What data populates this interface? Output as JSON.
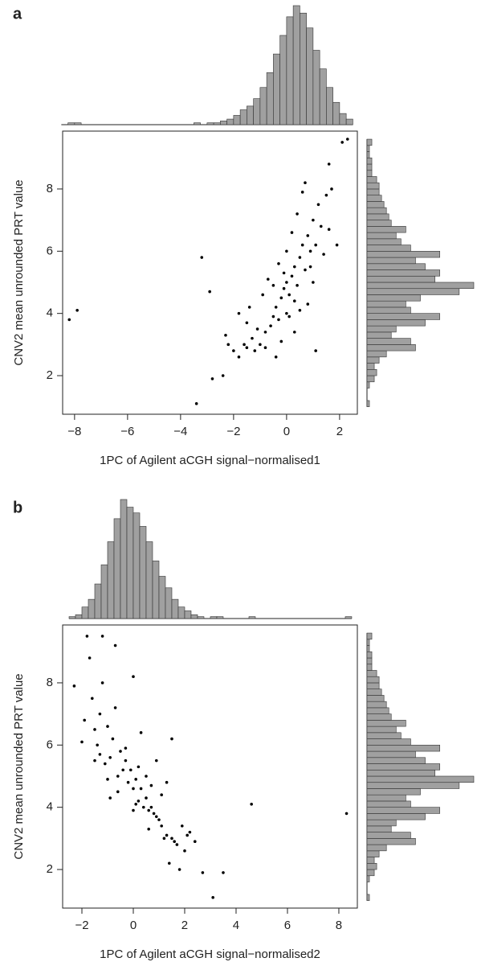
{
  "chart_data": [
    {
      "type": "scatter",
      "panel_label": "a",
      "x_label": "1PC of Agilent aCGH signal−normalised1",
      "y_label": "CNV2 mean unrounded PRT value",
      "color": "#000000",
      "x": [
        -8.2,
        -7.9,
        -3.4,
        -3.2,
        -2.9,
        -2.8,
        -2.4,
        2.3,
        2.1,
        1.6,
        1.1,
        -2.2,
        -2.0,
        -1.8,
        -1.6,
        -1.5,
        -1.3,
        -1.2,
        -1.0,
        -0.8,
        -0.6,
        -0.5,
        -0.4,
        -0.3,
        -0.2,
        -0.1,
        0,
        0.1,
        0.2,
        0.3,
        0.4,
        0.5,
        0.6,
        0.7,
        0.8,
        0.9,
        1.0,
        1.2,
        1.3,
        1.5,
        1.7,
        -1.8,
        -1.5,
        -1.1,
        -0.9,
        -0.7,
        -0.3,
        0,
        0.2,
        0.4,
        0.6,
        0.8,
        1.0,
        1.4,
        0.3,
        -0.2,
        0.1,
        -0.5,
        0.5,
        1.1,
        -1.4,
        0.7,
        -0.8,
        0.0,
        0.3,
        -0.1,
        1.9,
        1.6,
        -2.3,
        0.9,
        -0.4
      ],
      "values": [
        3.8,
        4.1,
        1.1,
        5.8,
        4.7,
        1.9,
        2.0,
        9.6,
        9.5,
        8.8,
        2.8,
        3.0,
        2.8,
        2.6,
        3.0,
        2.9,
        3.2,
        2.8,
        3.0,
        3.4,
        3.6,
        3.9,
        4.2,
        3.8,
        4.5,
        4.8,
        5.0,
        4.6,
        5.2,
        5.5,
        4.9,
        5.8,
        6.2,
        5.4,
        6.5,
        6.0,
        7.0,
        7.5,
        6.8,
        7.8,
        8.0,
        4.0,
        3.7,
        3.5,
        4.6,
        5.1,
        5.6,
        6.0,
        6.6,
        7.2,
        7.9,
        4.3,
        5.0,
        5.9,
        3.4,
        3.1,
        3.9,
        4.9,
        4.1,
        6.2,
        4.2,
        8.2,
        2.9,
        4.0,
        4.4,
        5.3,
        6.2,
        6.7,
        3.3,
        5.5,
        2.6
      ],
      "xlim": [
        -8.45,
        2.67
      ],
      "ylim": [
        0.76,
        9.86
      ],
      "xticks": [
        {
          "value": -8,
          "label": "−8"
        },
        {
          "value": -6,
          "label": "−6"
        },
        {
          "value": -4,
          "label": "−4"
        },
        {
          "value": -2,
          "label": "−2"
        },
        0,
        2
      ],
      "yticks": [
        2,
        4,
        6,
        8
      ]
    },
    {
      "type": "histogram",
      "orientation": "vertical",
      "color": "#a0a0a0",
      "bins": [
        -8.5,
        -8.25,
        -8,
        -7.75,
        -7.5,
        -7.25,
        -7,
        -6.75,
        -6.5,
        -6.25,
        -6,
        -5.75,
        -5.5,
        -5.25,
        -5,
        -4.75,
        -4.5,
        -4.25,
        -4,
        -3.75,
        -3.5,
        -3.25,
        -3,
        -2.75,
        -2.5,
        -2.25,
        -2,
        -1.75,
        -1.5,
        -1.25,
        -1,
        -0.75,
        -0.5,
        -0.25,
        0,
        0.25,
        0.5,
        0.75,
        1,
        1.25,
        1.5,
        1.75,
        2,
        2.25,
        2.5
      ],
      "counts": [
        0,
        1,
        1,
        0,
        0,
        0,
        0,
        0,
        0,
        0,
        0,
        0,
        0,
        0,
        0,
        0,
        0,
        0,
        0,
        0,
        1,
        0,
        1,
        1,
        2,
        3,
        5,
        8,
        10,
        14,
        20,
        28,
        38,
        48,
        58,
        64,
        60,
        52,
        40,
        30,
        20,
        12,
        6,
        3
      ]
    },
    {
      "type": "histogram",
      "orientation": "horizontal",
      "color": "#a0a0a0",
      "bins": [
        1.0,
        1.2,
        1.4,
        1.6,
        1.8,
        2.0,
        2.2,
        2.4,
        2.6,
        2.8,
        3.0,
        3.2,
        3.4,
        3.6,
        3.8,
        4.0,
        4.2,
        4.4,
        4.6,
        4.8,
        5.0,
        5.2,
        5.4,
        5.6,
        5.8,
        6.0,
        6.2,
        6.4,
        6.6,
        6.8,
        7.0,
        7.2,
        7.4,
        7.6,
        7.8,
        8.0,
        8.2,
        8.4,
        8.6,
        8.8,
        9.0,
        9.2,
        9.4,
        9.6
      ],
      "counts": [
        1,
        0,
        0,
        1,
        3,
        4,
        3,
        5,
        8,
        20,
        18,
        10,
        12,
        24,
        30,
        18,
        16,
        22,
        38,
        44,
        28,
        30,
        24,
        20,
        30,
        18,
        14,
        12,
        16,
        10,
        9,
        8,
        7,
        6,
        5,
        5,
        4,
        2,
        2,
        2,
        1,
        1,
        2
      ]
    },
    {
      "type": "scatter",
      "panel_label": "b",
      "x_label": "1PC of Agilent aCGH signal−normalised2",
      "y_label": "CNV2 mean unrounded PRT value",
      "color": "#000000",
      "x": [
        4.6,
        8.3,
        3.1,
        3.5,
        2.7,
        -1.8,
        -1.2,
        -0.7,
        0,
        -2.3,
        1.4,
        -1.6,
        -1.3,
        -1.0,
        -0.8,
        -0.5,
        -0.3,
        -0.1,
        0.1,
        0.3,
        0.5,
        0.7,
        0.9,
        1.1,
        1.3,
        1.5,
        1.7,
        2.0,
        2.2,
        -1.9,
        -1.4,
        -1.1,
        -0.6,
        -0.2,
        0.2,
        0.6,
        1.0,
        1.6,
        -1.5,
        -0.9,
        -0.4,
        0.0,
        0.4,
        0.8,
        1.2,
        2.4,
        -1.7,
        -1.2,
        -0.7,
        0.3,
        0.9,
        1.5,
        -2.0,
        -0.6,
        0.1,
        0.6,
        1.8,
        -1.0,
        -0.3,
        0.5,
        1.1,
        1.9,
        -1.5,
        0.0,
        0.7,
        -0.9,
        1.3,
        2.1,
        -1.3,
        0.2
      ],
      "values": [
        4.1,
        3.8,
        1.1,
        1.9,
        1.9,
        9.5,
        9.5,
        9.2,
        8.2,
        7.9,
        2.2,
        7.5,
        7.0,
        6.6,
        6.2,
        5.8,
        5.5,
        5.2,
        4.9,
        4.6,
        4.3,
        4.0,
        3.7,
        3.4,
        3.1,
        3.0,
        2.8,
        2.6,
        3.2,
        6.8,
        6.0,
        5.4,
        5.0,
        4.8,
        4.2,
        3.9,
        3.6,
        2.9,
        5.5,
        5.6,
        5.2,
        4.6,
        4.0,
        3.8,
        3.0,
        2.9,
        8.8,
        8.0,
        7.2,
        6.4,
        5.5,
        6.2,
        6.1,
        4.5,
        4.1,
        3.3,
        2.0,
        4.9,
        5.9,
        5.0,
        4.4,
        3.4,
        6.5,
        3.9,
        4.7,
        4.3,
        4.8,
        3.1,
        5.7,
        5.3
      ],
      "xlim": [
        -2.75,
        8.72
      ],
      "ylim": [
        0.76,
        9.86
      ],
      "xticks": [
        {
          "value": -2,
          "label": "−2"
        },
        0,
        2,
        4,
        6,
        8
      ],
      "yticks": [
        2,
        4,
        6,
        8
      ]
    },
    {
      "type": "histogram",
      "orientation": "vertical",
      "color": "#a0a0a0",
      "bins": [
        -2.5,
        -2.25,
        -2,
        -1.75,
        -1.5,
        -1.25,
        -1,
        -0.75,
        -0.5,
        -0.25,
        0,
        0.25,
        0.5,
        0.75,
        1,
        1.25,
        1.5,
        1.75,
        2,
        2.25,
        2.5,
        2.75,
        3,
        3.25,
        3.5,
        3.75,
        4,
        4.25,
        4.5,
        4.75,
        5,
        5.25,
        5.5,
        5.75,
        6,
        6.25,
        6.5,
        6.75,
        7,
        7.25,
        7.5,
        7.75,
        8,
        8.25,
        8.5
      ],
      "counts": [
        1,
        2,
        6,
        10,
        18,
        28,
        40,
        52,
        62,
        58,
        55,
        48,
        40,
        30,
        22,
        16,
        10,
        6,
        4,
        2,
        1,
        0,
        1,
        1,
        0,
        0,
        0,
        0,
        1,
        0,
        0,
        0,
        0,
        0,
        0,
        0,
        0,
        0,
        0,
        0,
        0,
        0,
        0,
        1
      ]
    },
    {
      "type": "histogram",
      "orientation": "horizontal",
      "color": "#a0a0a0",
      "bins": [
        1.0,
        1.2,
        1.4,
        1.6,
        1.8,
        2.0,
        2.2,
        2.4,
        2.6,
        2.8,
        3.0,
        3.2,
        3.4,
        3.6,
        3.8,
        4.0,
        4.2,
        4.4,
        4.6,
        4.8,
        5.0,
        5.2,
        5.4,
        5.6,
        5.8,
        6.0,
        6.2,
        6.4,
        6.6,
        6.8,
        7.0,
        7.2,
        7.4,
        7.6,
        7.8,
        8.0,
        8.2,
        8.4,
        8.6,
        8.8,
        9.0,
        9.2,
        9.4,
        9.6
      ],
      "counts": [
        1,
        0,
        0,
        1,
        3,
        4,
        3,
        5,
        8,
        20,
        18,
        10,
        12,
        24,
        30,
        18,
        16,
        22,
        38,
        44,
        28,
        30,
        24,
        20,
        30,
        18,
        14,
        12,
        16,
        10,
        9,
        8,
        7,
        6,
        5,
        5,
        4,
        2,
        2,
        2,
        1,
        1,
        2
      ]
    }
  ]
}
